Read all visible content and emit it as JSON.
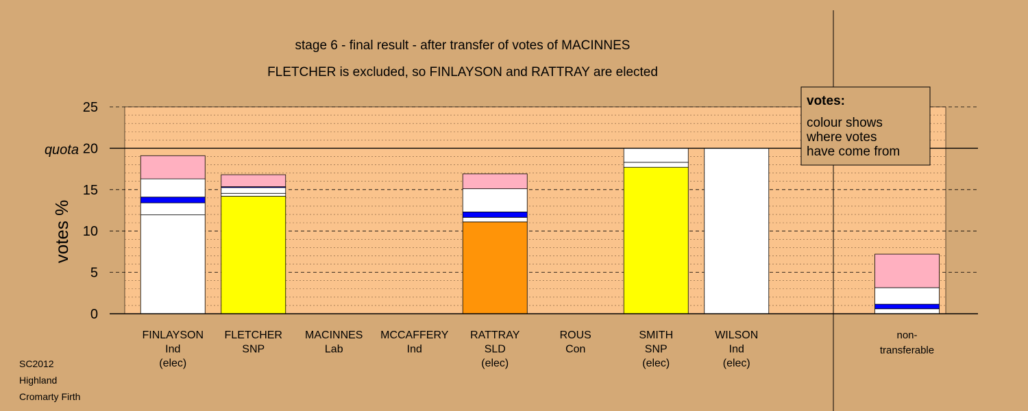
{
  "chart_data": {
    "type": "bar",
    "title": "stage 6 - final result - after transfer of votes of MACINNES",
    "subtitle": "FLETCHER is excluded, so FINLAYSON and RATTRAY are elected",
    "ylabel": "votes %",
    "quota_label": "quota",
    "quota": 20,
    "ylim": [
      0,
      25
    ],
    "yticks": [
      0,
      5,
      10,
      15,
      20,
      25
    ],
    "grid": true,
    "legend": {
      "position": "top-right",
      "title": "votes:",
      "lines": [
        "colour shows",
        "where votes",
        "have come from"
      ]
    },
    "footer": [
      "SC2012",
      "Highland",
      "Cromarty Firth"
    ],
    "colors": {
      "background": "#d4a976",
      "plot_area": "#fac38c",
      "Ind": "#ffffff",
      "SNP": "#ffff00",
      "SLD": "#ff9408",
      "Lab": "#ffb0c0",
      "Con": "#0000ff"
    },
    "candidates": [
      {
        "name": "FINLAYSON",
        "party": "Ind",
        "status": "(elec)",
        "segments": [
          {
            "from": "Ind",
            "value": 11.95
          },
          {
            "from": "Ind",
            "value": 1.45
          },
          {
            "from": "Con",
            "value": 0.7
          },
          {
            "from": "Ind",
            "value": 2.2
          },
          {
            "from": "Lab",
            "value": 2.8
          }
        ]
      },
      {
        "name": "FLETCHER",
        "party": "SNP",
        "status": "",
        "segments": [
          {
            "from": "SNP",
            "value": 14.2
          },
          {
            "from": "Ind",
            "value": 0.35
          },
          {
            "from": "Ind",
            "value": 0.7
          },
          {
            "from": "Con",
            "value": 0.1
          },
          {
            "from": "Lab",
            "value": 1.45
          }
        ]
      },
      {
        "name": "MACINNES",
        "party": "Lab",
        "status": "",
        "segments": []
      },
      {
        "name": "MCCAFFERY",
        "party": "Ind",
        "status": "",
        "segments": []
      },
      {
        "name": "RATTRAY",
        "party": "SLD",
        "status": "(elec)",
        "segments": [
          {
            "from": "SLD",
            "value": 11.1
          },
          {
            "from": "Ind",
            "value": 0.55
          },
          {
            "from": "Con",
            "value": 0.65
          },
          {
            "from": "Ind",
            "value": 2.8
          },
          {
            "from": "Lab",
            "value": 1.8
          }
        ]
      },
      {
        "name": "ROUS",
        "party": "Con",
        "status": "",
        "segments": []
      },
      {
        "name": "SMITH",
        "party": "SNP",
        "status": "(elec)",
        "segments": [
          {
            "from": "SNP",
            "value": 17.7
          },
          {
            "from": "Ind",
            "value": 0.6
          },
          {
            "from": "Ind",
            "value": 1.7
          }
        ]
      },
      {
        "name": "WILSON",
        "party": "Ind",
        "status": "(elec)",
        "segments": [
          {
            "from": "Ind",
            "value": 20
          }
        ]
      }
    ],
    "nontransferable": {
      "label_lines": [
        "non-",
        "transferable"
      ],
      "segments": [
        {
          "from": "Ind",
          "value": 0.6
        },
        {
          "from": "Con",
          "value": 0.55
        },
        {
          "from": "Ind",
          "value": 2.0
        },
        {
          "from": "Lab",
          "value": 4.05
        }
      ]
    }
  }
}
